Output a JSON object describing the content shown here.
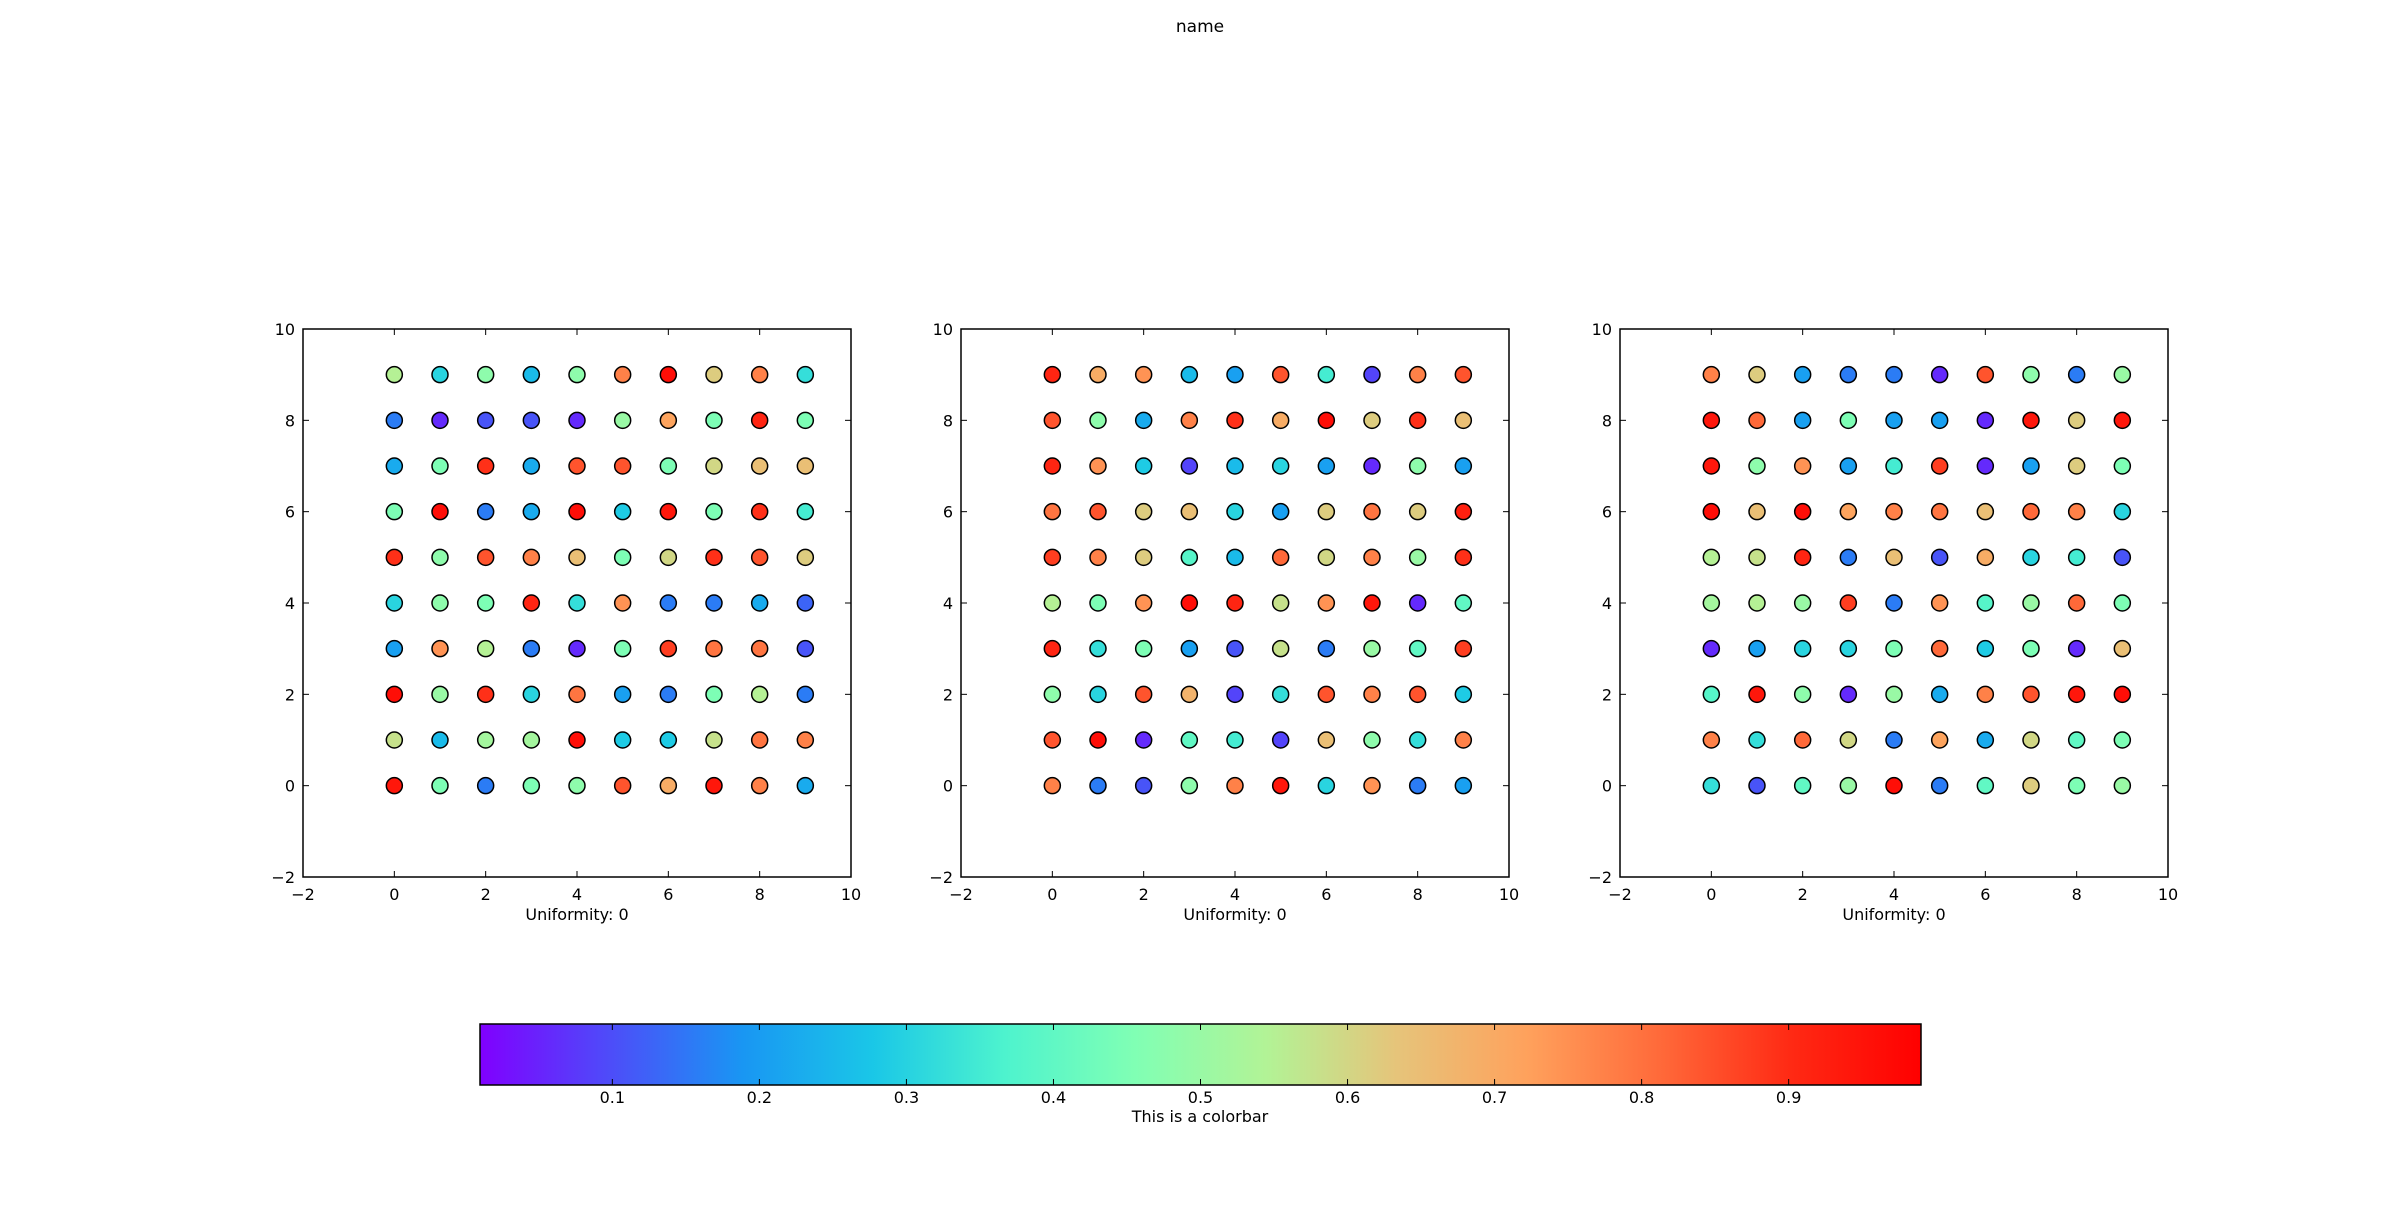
{
  "figure": {
    "title": "name"
  },
  "colorbar": {
    "label": "This is a colorbar",
    "ticks": [
      0.1,
      0.2,
      0.3,
      0.4,
      0.5,
      0.6,
      0.7,
      0.8,
      0.9
    ],
    "range": [
      0.01,
      0.99
    ],
    "colormap": [
      "#8000ff",
      "#4d4df9",
      "#1996f3",
      "#1ac7e7",
      "#4df3ce",
      "#80ffb4",
      "#b2f396",
      "#e6c47a",
      "#ffa15c",
      "#ff6a3a",
      "#ff2a14",
      "#ff0000"
    ]
  },
  "chart_data": [
    {
      "type": "scatter",
      "xlabel": "Uniformity: 0",
      "xlim": [
        -2,
        10
      ],
      "ylim": [
        -2,
        10
      ],
      "xticks": [
        -2,
        0,
        2,
        4,
        6,
        8,
        10
      ],
      "yticks": [
        -2,
        0,
        2,
        4,
        6,
        8,
        10
      ],
      "x": [
        0,
        1,
        2,
        3,
        4,
        5,
        6,
        7,
        8,
        9
      ],
      "y": [
        0,
        1,
        2,
        3,
        4,
        5,
        6,
        7,
        8,
        9
      ],
      "color_values": [
        [
          0.95,
          0.45,
          0.15,
          0.45,
          0.48,
          0.85,
          0.7,
          0.95,
          0.78,
          0.22
        ],
        [
          0.58,
          0.25,
          0.52,
          0.52,
          0.97,
          0.28,
          0.28,
          0.58,
          0.8,
          0.78
        ],
        [
          0.97,
          0.5,
          0.9,
          0.3,
          0.8,
          0.2,
          0.15,
          0.45,
          0.55,
          0.15
        ],
        [
          0.2,
          0.75,
          0.55,
          0.15,
          0.05,
          0.45,
          0.88,
          0.8,
          0.8,
          0.1
        ],
        [
          0.3,
          0.48,
          0.45,
          0.92,
          0.32,
          0.75,
          0.15,
          0.15,
          0.22,
          0.12
        ],
        [
          0.9,
          0.48,
          0.85,
          0.78,
          0.65,
          0.45,
          0.6,
          0.9,
          0.85,
          0.62
        ],
        [
          0.45,
          0.97,
          0.15,
          0.22,
          0.97,
          0.28,
          0.95,
          0.45,
          0.9,
          0.35
        ],
        [
          0.22,
          0.45,
          0.9,
          0.22,
          0.85,
          0.85,
          0.45,
          0.6,
          0.65,
          0.65
        ],
        [
          0.15,
          0.05,
          0.1,
          0.1,
          0.05,
          0.5,
          0.72,
          0.45,
          0.92,
          0.45
        ],
        [
          0.55,
          0.3,
          0.48,
          0.25,
          0.48,
          0.78,
          0.97,
          0.62,
          0.78,
          0.32
        ]
      ]
    },
    {
      "type": "scatter",
      "xlabel": "Uniformity: 0",
      "xlim": [
        -2,
        10
      ],
      "ylim": [
        -2,
        10
      ],
      "xticks": [
        -2,
        0,
        2,
        4,
        6,
        8,
        10
      ],
      "yticks": [
        -2,
        0,
        2,
        4,
        6,
        8,
        10
      ],
      "x": [
        0,
        1,
        2,
        3,
        4,
        5,
        6,
        7,
        8,
        9
      ],
      "y": [
        0,
        1,
        2,
        3,
        4,
        5,
        6,
        7,
        8,
        9
      ],
      "color_values": [
        [
          0.78,
          0.15,
          0.1,
          0.48,
          0.78,
          0.95,
          0.3,
          0.75,
          0.15,
          0.2
        ],
        [
          0.85,
          0.97,
          0.05,
          0.4,
          0.35,
          0.08,
          0.65,
          0.48,
          0.32,
          0.78
        ],
        [
          0.48,
          0.3,
          0.85,
          0.68,
          0.08,
          0.32,
          0.85,
          0.78,
          0.85,
          0.28
        ],
        [
          0.92,
          0.32,
          0.45,
          0.2,
          0.1,
          0.58,
          0.15,
          0.5,
          0.4,
          0.88
        ],
        [
          0.55,
          0.45,
          0.75,
          0.97,
          0.92,
          0.58,
          0.75,
          0.95,
          0.05,
          0.4
        ],
        [
          0.88,
          0.78,
          0.62,
          0.38,
          0.25,
          0.82,
          0.6,
          0.78,
          0.5,
          0.9
        ],
        [
          0.8,
          0.85,
          0.62,
          0.65,
          0.3,
          0.2,
          0.62,
          0.8,
          0.62,
          0.93
        ],
        [
          0.92,
          0.75,
          0.28,
          0.08,
          0.25,
          0.3,
          0.2,
          0.05,
          0.48,
          0.2
        ],
        [
          0.85,
          0.48,
          0.22,
          0.78,
          0.9,
          0.7,
          0.97,
          0.62,
          0.9,
          0.65
        ],
        [
          0.92,
          0.7,
          0.75,
          0.25,
          0.2,
          0.85,
          0.35,
          0.08,
          0.78,
          0.85
        ]
      ]
    },
    {
      "type": "scatter",
      "xlabel": "Uniformity: 0",
      "xlim": [
        -2,
        10
      ],
      "ylim": [
        -2,
        10
      ],
      "xticks": [
        -2,
        0,
        2,
        4,
        6,
        8,
        10
      ],
      "yticks": [
        -2,
        0,
        2,
        4,
        6,
        8,
        10
      ],
      "x": [
        0,
        1,
        2,
        3,
        4,
        5,
        6,
        7,
        8,
        9
      ],
      "y": [
        0,
        1,
        2,
        3,
        4,
        5,
        6,
        7,
        8,
        9
      ],
      "color_values": [
        [
          0.32,
          0.1,
          0.4,
          0.5,
          0.97,
          0.15,
          0.4,
          0.62,
          0.45,
          0.5
        ],
        [
          0.78,
          0.32,
          0.82,
          0.6,
          0.15,
          0.72,
          0.22,
          0.6,
          0.4,
          0.45
        ],
        [
          0.38,
          0.95,
          0.48,
          0.05,
          0.5,
          0.22,
          0.78,
          0.85,
          0.95,
          0.97
        ],
        [
          0.05,
          0.2,
          0.3,
          0.3,
          0.45,
          0.82,
          0.28,
          0.45,
          0.05,
          0.65
        ],
        [
          0.52,
          0.55,
          0.5,
          0.88,
          0.15,
          0.75,
          0.38,
          0.5,
          0.82,
          0.45
        ],
        [
          0.55,
          0.58,
          0.92,
          0.15,
          0.65,
          0.1,
          0.7,
          0.3,
          0.35,
          0.1
        ],
        [
          0.97,
          0.65,
          0.97,
          0.72,
          0.78,
          0.8,
          0.65,
          0.82,
          0.78,
          0.3
        ],
        [
          0.95,
          0.48,
          0.75,
          0.2,
          0.35,
          0.88,
          0.05,
          0.2,
          0.62,
          0.45
        ],
        [
          0.95,
          0.82,
          0.2,
          0.45,
          0.2,
          0.2,
          0.05,
          0.95,
          0.62,
          0.95
        ],
        [
          0.78,
          0.62,
          0.2,
          0.15,
          0.15,
          0.05,
          0.85,
          0.48,
          0.15,
          0.5
        ]
      ]
    }
  ]
}
